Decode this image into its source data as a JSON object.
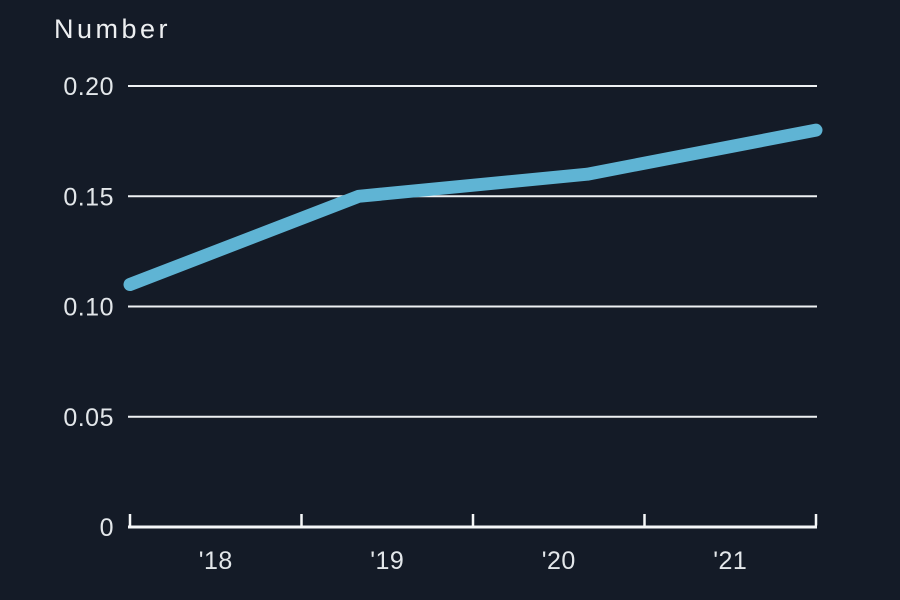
{
  "page": {
    "title": "Number"
  },
  "colors": {
    "background": "#141b27",
    "line": "#5fb4d4",
    "grid": "#eef1f3",
    "axis": "#f5f7f8",
    "text": "#e3e7ea",
    "title_text": "#edeff1"
  },
  "chart_data": {
    "type": "line",
    "title": "Number",
    "categories": [
      "'18",
      "'19",
      "'20",
      "'21"
    ],
    "values": [
      0.11,
      0.15,
      0.16,
      0.18
    ],
    "series": [
      {
        "name": "Number",
        "values": [
          0.11,
          0.15,
          0.16,
          0.18
        ]
      }
    ],
    "xlabel": "",
    "ylabel": "",
    "ylim": [
      0,
      0.2
    ],
    "yticks": [
      0,
      0.05,
      0.1,
      0.15,
      0.2
    ],
    "ytick_labels": [
      "0",
      "0.05",
      "0.10",
      "0.15",
      "0.20"
    ],
    "x_tick_labels": [
      "'18",
      "'19",
      "'20",
      "'21"
    ],
    "grid": "horizontal",
    "legend": "none",
    "line_width": 13,
    "line_color": "#5fb4d4"
  }
}
